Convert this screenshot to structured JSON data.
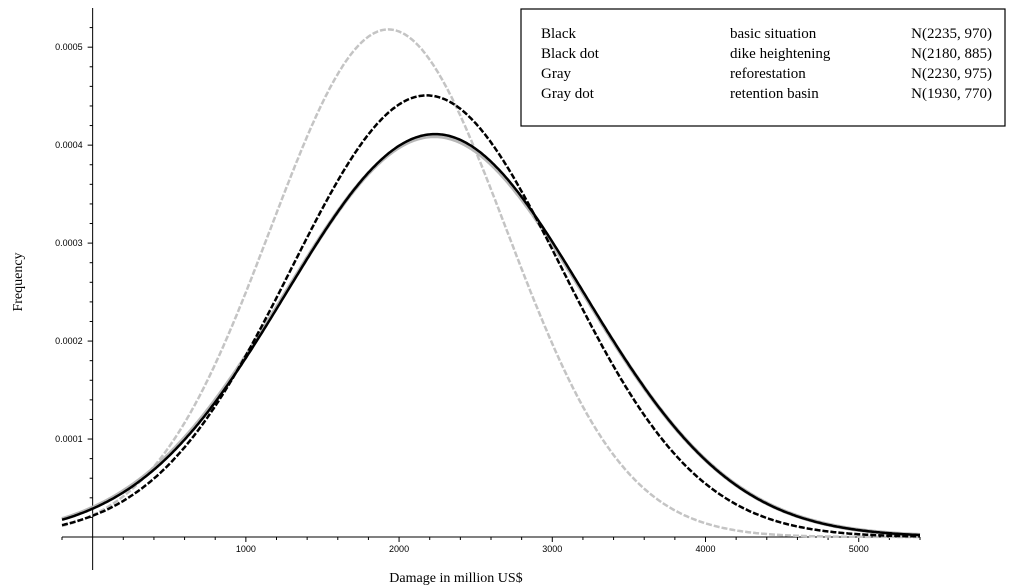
{
  "chart_data": {
    "type": "line",
    "xlabel": "Damage in million US$",
    "ylabel": "Frequency",
    "xlim": [
      -200,
      5400
    ],
    "ylim": [
      0,
      0.00054
    ],
    "x_ticks": [
      {
        "value": 1000,
        "label": "1000"
      },
      {
        "value": 2000,
        "label": "2000"
      },
      {
        "value": 3000,
        "label": "3000"
      },
      {
        "value": 4000,
        "label": "4000"
      },
      {
        "value": 5000,
        "label": "5000"
      }
    ],
    "y_ticks": [
      {
        "value": 0.0001,
        "label": "0.0001"
      },
      {
        "value": 0.0002,
        "label": "0.0002"
      },
      {
        "value": 0.0003,
        "label": "0.0003"
      },
      {
        "value": 0.0004,
        "label": "0.0004"
      },
      {
        "value": 0.0005,
        "label": "0.0005"
      }
    ],
    "series": [
      {
        "name": "Black",
        "description": "basic situation",
        "label": "N(2235, 970)",
        "mean": 2235,
        "sd": 970,
        "color": "#000000",
        "style": "solid"
      },
      {
        "name": "Black dot",
        "description": "dike heightening",
        "label": "N(2180, 885)",
        "mean": 2180,
        "sd": 885,
        "color": "#000000",
        "style": "dashed"
      },
      {
        "name": "Gray",
        "description": "reforestation",
        "label": "N(2230, 975)",
        "mean": 2230,
        "sd": 975,
        "color": "#b8b8b8",
        "style": "solid"
      },
      {
        "name": "Gray dot",
        "description": "retention basin",
        "label": "N(1930, 770)",
        "mean": 1930,
        "sd": 770,
        "color": "#c4c4c4",
        "style": "dashed"
      }
    ],
    "legend_position": "top-right",
    "grid": false
  }
}
